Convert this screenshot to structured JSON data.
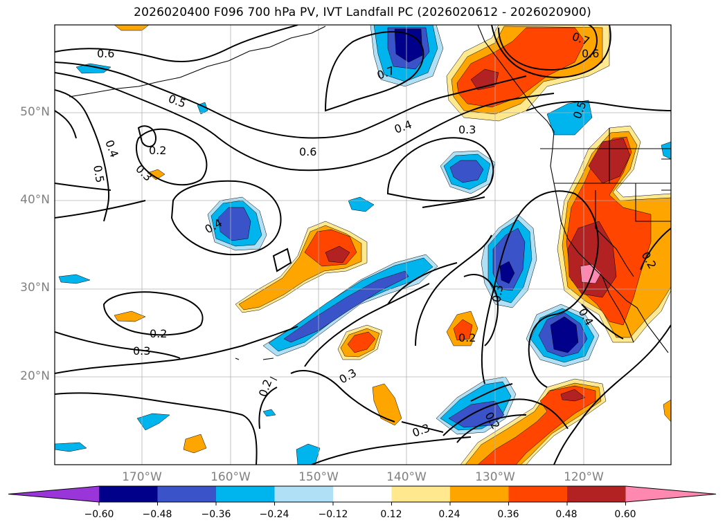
{
  "title": "2026020400 F096 700 hPa PV, IVT Landfall PC (2026020612 - 2026020900)",
  "map": {
    "lat_labels": [
      "50°N",
      "40°N",
      "30°N",
      "20°N"
    ],
    "lon_labels": [
      "170°W",
      "160°W",
      "150°W",
      "140°W",
      "130°W",
      "120°W"
    ],
    "contour_labels": [
      "0.6",
      "0.5",
      "0.4",
      "0.5",
      "0.2",
      "0.3",
      "0.6",
      "0.4",
      "0.3",
      "0.7",
      "0.7",
      "0.6",
      "0.5",
      "0.4",
      "0.2",
      "0.3",
      "0.3",
      "0.2",
      "0.3",
      "0.2",
      "0.4",
      "0.2",
      "0.3",
      "0.2"
    ]
  },
  "colorbar": {
    "tick_labels": [
      "−0.60",
      "−0.48",
      "−0.36",
      "−0.24",
      "−0.12",
      "0.12",
      "0.24",
      "0.36",
      "0.48",
      "0.60"
    ],
    "colors": [
      "#9a36d9",
      "#00008b",
      "#3a53c9",
      "#00b4ee",
      "#b0e0f5",
      "#ffffff",
      "#ffe88e",
      "#ffa500",
      "#ff4500",
      "#b22222",
      "#ff88b0"
    ],
    "ticks": [
      -0.6,
      -0.48,
      -0.36,
      -0.24,
      -0.12,
      0.12,
      0.24,
      0.36,
      0.48,
      0.6
    ]
  }
}
